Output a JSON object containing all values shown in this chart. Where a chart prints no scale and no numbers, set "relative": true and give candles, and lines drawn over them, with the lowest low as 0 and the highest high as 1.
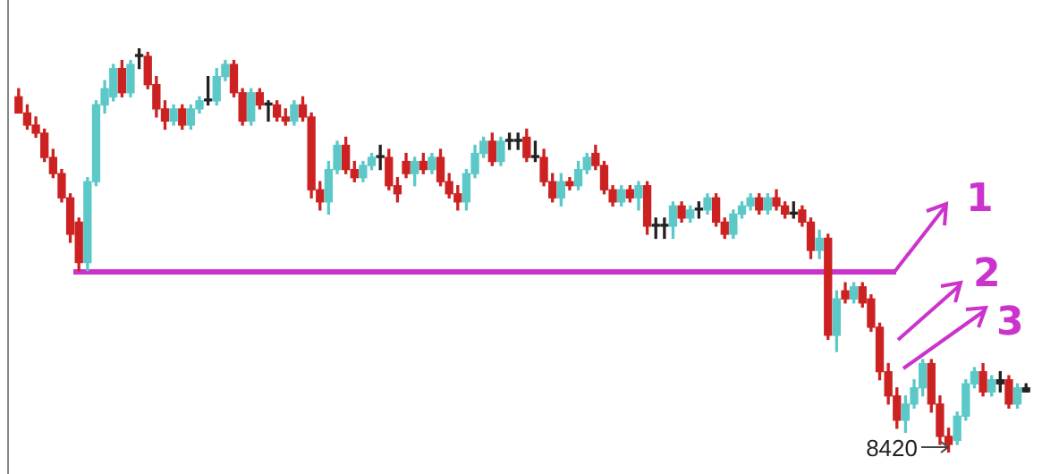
{
  "chart_data": {
    "type": "candlestick",
    "relative": true,
    "categories": [
      null,
      null,
      null,
      null,
      null,
      null,
      null,
      null,
      null,
      null,
      null,
      null,
      null,
      null,
      null,
      null,
      null,
      null,
      null,
      null,
      null,
      null,
      null,
      null,
      null,
      null,
      null,
      null,
      null,
      null,
      null,
      null,
      null,
      null,
      null,
      null,
      null,
      null,
      null,
      null,
      null,
      null,
      null,
      null,
      null,
      null,
      null,
      null,
      null,
      null,
      null,
      null,
      null,
      null,
      null,
      null,
      null,
      null,
      null,
      null,
      null,
      null,
      null,
      null,
      null,
      null,
      null,
      null,
      null,
      null,
      null,
      null,
      null,
      null,
      null,
      null,
      null,
      null,
      null,
      null,
      null,
      null,
      null,
      null,
      null,
      null,
      null,
      null,
      null,
      null,
      null,
      null,
      null,
      null,
      null,
      null,
      null,
      null,
      null,
      null,
      null,
      null,
      null,
      null,
      null,
      null,
      null,
      null,
      null,
      null,
      null,
      null,
      null,
      null,
      null,
      null,
      null,
      null
    ],
    "ohlc": [
      [
        0.88,
        0.9,
        0.84,
        0.84
      ],
      [
        0.84,
        0.86,
        0.8,
        0.81
      ],
      [
        0.81,
        0.83,
        0.78,
        0.79
      ],
      [
        0.79,
        0.8,
        0.72,
        0.73
      ],
      [
        0.73,
        0.75,
        0.68,
        0.69
      ],
      [
        0.69,
        0.7,
        0.62,
        0.63
      ],
      [
        0.63,
        0.64,
        0.52,
        0.54
      ],
      [
        0.57,
        0.58,
        0.45,
        0.47
      ],
      [
        0.47,
        0.68,
        0.45,
        0.67
      ],
      [
        0.67,
        0.87,
        0.66,
        0.86
      ],
      [
        0.86,
        0.92,
        0.84,
        0.9
      ],
      [
        0.88,
        0.96,
        0.87,
        0.95
      ],
      [
        0.95,
        0.97,
        0.88,
        0.89
      ],
      [
        0.89,
        0.97,
        0.88,
        0.96
      ],
      [
        0.98,
        1,
        0.95,
        0.98
      ],
      [
        0.98,
        0.99,
        0.9,
        0.91
      ],
      [
        0.91,
        0.93,
        0.83,
        0.85
      ],
      [
        0.85,
        0.87,
        0.8,
        0.82
      ],
      [
        0.82,
        0.86,
        0.81,
        0.85
      ],
      [
        0.85,
        0.86,
        0.8,
        0.81
      ],
      [
        0.81,
        0.86,
        0.8,
        0.85
      ],
      [
        0.85,
        0.88,
        0.84,
        0.87
      ],
      [
        0.87,
        0.93,
        0.86,
        0.87
      ],
      [
        0.87,
        0.95,
        0.86,
        0.93
      ],
      [
        0.93,
        0.97,
        0.92,
        0.96
      ],
      [
        0.96,
        0.97,
        0.88,
        0.89
      ],
      [
        0.89,
        0.9,
        0.81,
        0.82
      ],
      [
        0.82,
        0.9,
        0.81,
        0.89
      ],
      [
        0.89,
        0.9,
        0.85,
        0.86
      ],
      [
        0.86,
        0.87,
        0.82,
        0.86
      ],
      [
        0.86,
        0.87,
        0.82,
        0.83
      ],
      [
        0.83,
        0.85,
        0.81,
        0.82
      ],
      [
        0.82,
        0.87,
        0.81,
        0.86
      ],
      [
        0.86,
        0.88,
        0.82,
        0.83
      ],
      [
        0.83,
        0.84,
        0.63,
        0.65
      ],
      [
        0.65,
        0.67,
        0.6,
        0.62
      ],
      [
        0.62,
        0.72,
        0.59,
        0.7
      ],
      [
        0.7,
        0.77,
        0.69,
        0.76
      ],
      [
        0.76,
        0.78,
        0.69,
        0.7
      ],
      [
        0.7,
        0.72,
        0.67,
        0.68
      ],
      [
        0.68,
        0.72,
        0.67,
        0.71
      ],
      [
        0.71,
        0.74,
        0.7,
        0.73
      ],
      [
        0.73,
        0.76,
        0.7,
        0.73
      ],
      [
        0.73,
        0.75,
        0.65,
        0.66
      ],
      [
        0.66,
        0.68,
        0.62,
        0.64
      ],
      [
        0.72,
        0.74,
        0.68,
        0.69
      ],
      [
        0.69,
        0.73,
        0.66,
        0.72
      ],
      [
        0.72,
        0.74,
        0.69,
        0.7
      ],
      [
        0.7,
        0.74,
        0.69,
        0.73
      ],
      [
        0.73,
        0.75,
        0.66,
        0.67
      ],
      [
        0.67,
        0.69,
        0.63,
        0.64
      ],
      [
        0.64,
        0.66,
        0.6,
        0.62
      ],
      [
        0.62,
        0.7,
        0.6,
        0.69
      ],
      [
        0.69,
        0.76,
        0.68,
        0.74
      ],
      [
        0.74,
        0.78,
        0.73,
        0.77
      ],
      [
        0.77,
        0.79,
        0.71,
        0.72
      ],
      [
        0.72,
        0.78,
        0.71,
        0.77
      ],
      [
        0.77,
        0.79,
        0.75,
        0.77
      ],
      [
        0.77,
        0.79,
        0.75,
        0.77
      ],
      [
        0.78,
        0.8,
        0.72,
        0.73
      ],
      [
        0.73,
        0.77,
        0.72,
        0.73
      ],
      [
        0.73,
        0.75,
        0.66,
        0.67
      ],
      [
        0.67,
        0.69,
        0.62,
        0.63
      ],
      [
        0.63,
        0.69,
        0.61,
        0.67
      ],
      [
        0.67,
        0.68,
        0.65,
        0.66
      ],
      [
        0.66,
        0.72,
        0.65,
        0.7
      ],
      [
        0.7,
        0.74,
        0.69,
        0.73
      ],
      [
        0.74,
        0.76,
        0.7,
        0.71
      ],
      [
        0.71,
        0.72,
        0.64,
        0.65
      ],
      [
        0.65,
        0.66,
        0.61,
        0.62
      ],
      [
        0.62,
        0.66,
        0.61,
        0.65
      ],
      [
        0.65,
        0.66,
        0.62,
        0.63
      ],
      [
        0.63,
        0.67,
        0.6,
        0.66
      ],
      [
        0.66,
        0.67,
        0.54,
        0.56
      ],
      [
        0.56,
        0.58,
        0.53,
        0.56
      ],
      [
        0.56,
        0.58,
        0.53,
        0.56
      ],
      [
        0.56,
        0.62,
        0.53,
        0.61
      ],
      [
        0.61,
        0.62,
        0.57,
        0.58
      ],
      [
        0.58,
        0.61,
        0.57,
        0.6
      ],
      [
        0.6,
        0.62,
        0.58,
        0.6
      ],
      [
        0.6,
        0.64,
        0.59,
        0.63
      ],
      [
        0.63,
        0.64,
        0.56,
        0.57
      ],
      [
        0.57,
        0.58,
        0.53,
        0.54
      ],
      [
        0.54,
        0.6,
        0.53,
        0.59
      ],
      [
        0.59,
        0.62,
        0.58,
        0.61
      ],
      [
        0.61,
        0.64,
        0.6,
        0.63
      ],
      [
        0.63,
        0.64,
        0.59,
        0.6
      ],
      [
        0.6,
        0.64,
        0.59,
        0.63
      ],
      [
        0.63,
        0.65,
        0.6,
        0.61
      ],
      [
        0.61,
        0.62,
        0.58,
        0.59
      ],
      [
        0.59,
        0.62,
        0.58,
        0.59
      ],
      [
        0.6,
        0.61,
        0.56,
        0.57
      ],
      [
        0.57,
        0.58,
        0.48,
        0.5
      ],
      [
        0.5,
        0.55,
        0.48,
        0.53
      ],
      [
        0.53,
        0.54,
        0.28,
        0.29
      ],
      [
        0.29,
        0.4,
        0.25,
        0.38
      ],
      [
        0.4,
        0.42,
        0.37,
        0.38
      ],
      [
        0.38,
        0.42,
        0.37,
        0.41
      ],
      [
        0.41,
        0.42,
        0.36,
        0.37
      ],
      [
        0.38,
        0.39,
        0.3,
        0.31
      ],
      [
        0.31,
        0.32,
        0.18,
        0.2
      ],
      [
        0.2,
        0.22,
        0.12,
        0.14
      ],
      [
        0.14,
        0.16,
        0.06,
        0.08
      ],
      [
        0.08,
        0.14,
        0.05,
        0.12
      ],
      [
        0.12,
        0.18,
        0.11,
        0.16
      ],
      [
        0.16,
        0.23,
        0.14,
        0.22
      ],
      [
        0.22,
        0.23,
        0.1,
        0.12
      ],
      [
        0.12,
        0.14,
        0.02,
        0.04
      ],
      [
        0.04,
        0.06,
        0,
        0.02
      ],
      [
        0.03,
        0.1,
        0.02,
        0.09
      ],
      [
        0.09,
        0.18,
        0.08,
        0.17
      ],
      [
        0.17,
        0.21,
        0.16,
        0.2
      ],
      [
        0.2,
        0.22,
        0.14,
        0.15
      ],
      [
        0.15,
        0.19,
        0.14,
        0.18
      ],
      [
        0.18,
        0.2,
        0.15,
        0.17
      ],
      [
        0.18,
        0.19,
        0.11,
        0.12
      ],
      [
        0.12,
        0.17,
        0.11,
        0.16
      ],
      [
        0.16,
        0.17,
        0.15,
        0.15
      ]
    ],
    "colors": [
      "#cc2222",
      "#cc2222",
      "#cc2222",
      "#cc2222",
      "#cc2222",
      "#cc2222",
      "#cc2222",
      "#cc2222",
      "#5cc8c8",
      "#5cc8c8",
      "#5cc8c8",
      "#5cc8c8",
      "#cc2222",
      "#5cc8c8",
      "#222222",
      "#cc2222",
      "#cc2222",
      "#cc2222",
      "#5cc8c8",
      "#cc2222",
      "#5cc8c8",
      "#5cc8c8",
      "#222222",
      "#5cc8c8",
      "#5cc8c8",
      "#cc2222",
      "#cc2222",
      "#5cc8c8",
      "#cc2222",
      "#222222",
      "#cc2222",
      "#cc2222",
      "#5cc8c8",
      "#cc2222",
      "#cc2222",
      "#cc2222",
      "#5cc8c8",
      "#5cc8c8",
      "#cc2222",
      "#cc2222",
      "#5cc8c8",
      "#5cc8c8",
      "#222222",
      "#cc2222",
      "#cc2222",
      "#cc2222",
      "#5cc8c8",
      "#cc2222",
      "#5cc8c8",
      "#cc2222",
      "#cc2222",
      "#cc2222",
      "#5cc8c8",
      "#5cc8c8",
      "#5cc8c8",
      "#cc2222",
      "#5cc8c8",
      "#222222",
      "#222222",
      "#cc2222",
      "#222222",
      "#cc2222",
      "#cc2222",
      "#5cc8c8",
      "#cc2222",
      "#5cc8c8",
      "#5cc8c8",
      "#cc2222",
      "#cc2222",
      "#cc2222",
      "#5cc8c8",
      "#cc2222",
      "#5cc8c8",
      "#cc2222",
      "#222222",
      "#222222",
      "#5cc8c8",
      "#cc2222",
      "#5cc8c8",
      "#222222",
      "#5cc8c8",
      "#cc2222",
      "#cc2222",
      "#5cc8c8",
      "#5cc8c8",
      "#5cc8c8",
      "#cc2222",
      "#5cc8c8",
      "#cc2222",
      "#cc2222",
      "#222222",
      "#cc2222",
      "#cc2222",
      "#5cc8c8",
      "#cc2222",
      "#5cc8c8",
      "#cc2222",
      "#5cc8c8",
      "#cc2222",
      "#cc2222",
      "#cc2222",
      "#cc2222",
      "#cc2222",
      "#5cc8c8",
      "#5cc8c8",
      "#5cc8c8",
      "#cc2222",
      "#cc2222",
      "#cc2222",
      "#5cc8c8",
      "#5cc8c8",
      "#5cc8c8",
      "#cc2222",
      "#5cc8c8",
      "#222222",
      "#cc2222",
      "#5cc8c8",
      "#222222"
    ],
    "ref_lines": [
      {
        "axis": "y",
        "value": 0.447,
        "color": "#cc33cc"
      }
    ],
    "annotations": [
      "1",
      "2",
      "3",
      "8420"
    ]
  }
}
